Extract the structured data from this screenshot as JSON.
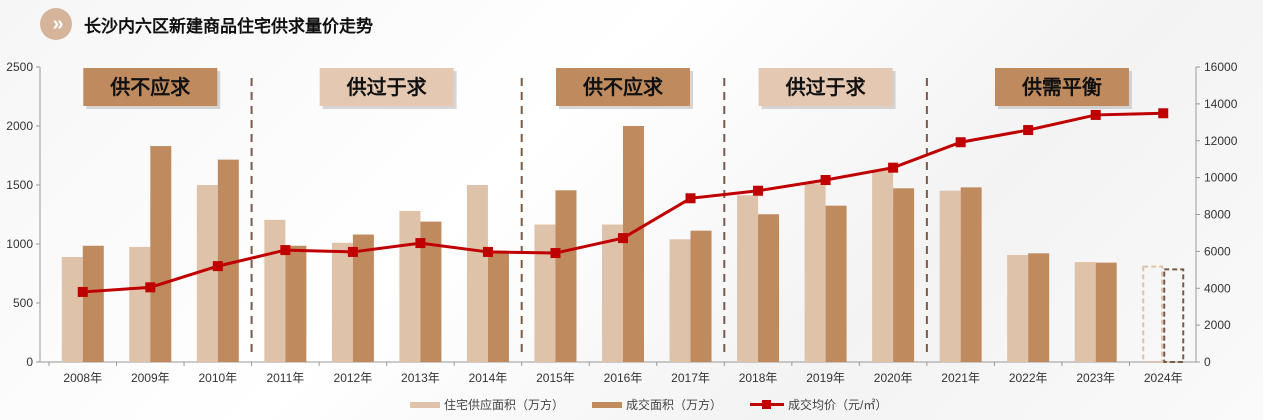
{
  "title": "长沙内六区新建商品住宅供求量价走势",
  "title_icon": "double-chevron-right-icon",
  "chart_data": {
    "type": "bar+line",
    "categories": [
      "2008年",
      "2009年",
      "2010年",
      "2011年",
      "2012年",
      "2013年",
      "2014年",
      "2015年",
      "2016年",
      "2017年",
      "2018年",
      "2019年",
      "2020年",
      "2021年",
      "2022年",
      "2023年",
      "2024年"
    ],
    "series": [
      {
        "name": "住宅供应面积（万方）",
        "type": "bar",
        "axis": "left",
        "color": "#dfc2aa",
        "values": [
          890,
          975,
          1500,
          1205,
          1010,
          1280,
          1500,
          1165,
          1165,
          1040,
          1413,
          1514,
          1627,
          1452,
          907,
          847,
          808
        ]
      },
      {
        "name": "成交面积（万方）",
        "type": "bar",
        "axis": "left",
        "color": "#bf8a5e",
        "values": [
          985,
          1830,
          1715,
          985,
          1080,
          1190,
          940,
          1455,
          2000,
          1113,
          1252,
          1325,
          1472,
          1480,
          921,
          842,
          785
        ]
      },
      {
        "name": "成交均价（元/㎡）",
        "type": "line",
        "axis": "right",
        "color": "#c00000",
        "values": [
          3800,
          4050,
          5200,
          6070,
          5970,
          6450,
          5970,
          5910,
          6720,
          8880,
          9290,
          9870,
          10540,
          11920,
          12580,
          13400,
          13490
        ]
      }
    ],
    "dashed_bars_categories": [
      "2024年"
    ],
    "left_axis": {
      "ylim": [
        0,
        2500
      ],
      "ticks": [
        "0",
        "500",
        "1000",
        "1500",
        "2000",
        "2500"
      ]
    },
    "right_axis": {
      "ylim": [
        0,
        16000
      ],
      "ticks": [
        "0",
        "2000",
        "4000",
        "6000",
        "8000",
        "10000",
        "12000",
        "14000",
        "16000"
      ]
    },
    "grid": false,
    "legend_position": "bottom",
    "phases": [
      {
        "label": "供不应求",
        "style": "dark",
        "years": [
          "2008年",
          "2010年"
        ]
      },
      {
        "label": "供过于求",
        "style": "light",
        "years": [
          "2011年",
          "2014年"
        ]
      },
      {
        "label": "供不应求",
        "style": "dark",
        "years": [
          "2015年",
          "2017年"
        ]
      },
      {
        "label": "供过于求",
        "style": "light",
        "years": [
          "2018年",
          "2020年"
        ]
      },
      {
        "label": "供需平衡",
        "style": "dark",
        "years": [
          "2021年",
          "2024年"
        ]
      }
    ]
  }
}
